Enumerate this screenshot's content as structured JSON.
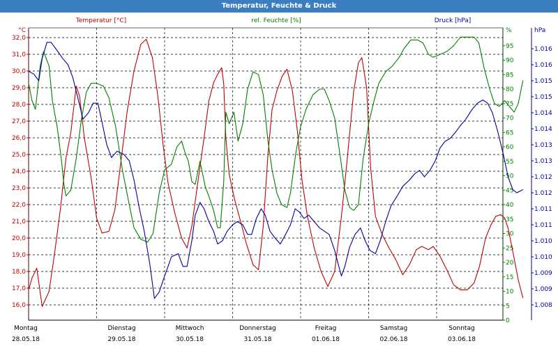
{
  "window": {
    "title": "Temperatur, Feuchte & Druck"
  },
  "colors": {
    "temperature": "#c00000",
    "humidity": "#008000",
    "pressure": "#0000a0",
    "titlebar": "#3a7ec0",
    "grid": "#000000"
  },
  "legend": {
    "temperature": "Temperatur [°C]",
    "humidity": "rel. Feuchte [%]",
    "pressure": "Druck [hPa]"
  },
  "axes": {
    "left": {
      "unit": "°C",
      "ticks": [
        "16,0",
        "17,0",
        "18,0",
        "19,0",
        "20,0",
        "21,0",
        "22,0",
        "23,0",
        "24,0",
        "25,0",
        "26,0",
        "27,0",
        "28,0",
        "29,0",
        "30,0",
        "31,0",
        "32,0"
      ]
    },
    "right1": {
      "unit": "%",
      "ticks": [
        "0",
        "5",
        "10",
        "15",
        "20",
        "25",
        "30",
        "35",
        "40",
        "45",
        "50",
        "55",
        "60",
        "65",
        "70",
        "75",
        "80",
        "85",
        "90",
        "95"
      ]
    },
    "right2": {
      "unit": "hPa",
      "ticks": [
        "1.008",
        "1.009",
        "1.009",
        "1.010",
        "1.010",
        "1.011",
        "1.011",
        "1.012",
        "1.012",
        "1.013",
        "1.013",
        "1.014",
        "1.014",
        "1.015",
        "1.015",
        "1.016",
        "1.016"
      ]
    },
    "x": {
      "days": [
        {
          "day": "Montag",
          "date": "28.05.18"
        },
        {
          "day": "Dienstag",
          "date": "29.05.18"
        },
        {
          "day": "Mittwoch",
          "date": "30.05.18"
        },
        {
          "day": "Donnerstag",
          "date": "31.05.18"
        },
        {
          "day": "Freitag",
          "date": "01.06.18"
        },
        {
          "day": "Samstag",
          "date": "02.06.18"
        },
        {
          "day": "Sonntag",
          "date": "03.06.18"
        }
      ]
    }
  },
  "chart_data": {
    "type": "line",
    "title": "Temperatur, Feuchte & Druck",
    "x_unit": "days since 28.05.18 00:00",
    "xlim": [
      0,
      7
    ],
    "series": [
      {
        "name": "Temperatur [°C]",
        "axis": "left",
        "ylim": [
          15.5,
          32.7
        ],
        "points": [
          [
            0,
            16.9
          ],
          [
            0.05,
            17.6
          ],
          [
            0.12,
            18.2
          ],
          [
            0.2,
            15.9
          ],
          [
            0.3,
            16.8
          ],
          [
            0.38,
            19
          ],
          [
            0.47,
            21.8
          ],
          [
            0.55,
            24.8
          ],
          [
            0.62,
            26.3
          ],
          [
            0.7,
            29.1
          ],
          [
            0.75,
            28.5
          ],
          [
            0.82,
            26
          ],
          [
            0.92,
            23.6
          ],
          [
            1.0,
            21.2
          ],
          [
            1.08,
            20.3
          ],
          [
            1.18,
            20.4
          ],
          [
            1.27,
            21.7
          ],
          [
            1.37,
            25
          ],
          [
            1.45,
            27.6
          ],
          [
            1.55,
            30
          ],
          [
            1.65,
            31.6
          ],
          [
            1.73,
            31.9
          ],
          [
            1.82,
            30.8
          ],
          [
            1.9,
            28.5
          ],
          [
            1.98,
            25.5
          ],
          [
            2.05,
            23.3
          ],
          [
            2.15,
            21.5
          ],
          [
            2.25,
            20
          ],
          [
            2.33,
            19.4
          ],
          [
            2.4,
            20.7
          ],
          [
            2.5,
            23.7
          ],
          [
            2.58,
            26
          ],
          [
            2.65,
            28.2
          ],
          [
            2.72,
            29.3
          ],
          [
            2.78,
            29.8
          ],
          [
            2.84,
            30.2
          ],
          [
            2.87,
            29.2
          ],
          [
            2.9,
            26
          ],
          [
            2.95,
            23.8
          ],
          [
            3.03,
            22.3
          ],
          [
            3.13,
            20.8
          ],
          [
            3.2,
            19.7
          ],
          [
            3.3,
            18.4
          ],
          [
            3.38,
            18.1
          ],
          [
            3.45,
            20.7
          ],
          [
            3.52,
            25
          ],
          [
            3.58,
            27.7
          ],
          [
            3.65,
            28.8
          ],
          [
            3.73,
            29.7
          ],
          [
            3.8,
            30.1
          ],
          [
            3.88,
            28.8
          ],
          [
            3.95,
            26.5
          ],
          [
            4.02,
            23.5
          ],
          [
            4.1,
            21.3
          ],
          [
            4.2,
            19.4
          ],
          [
            4.3,
            18
          ],
          [
            4.4,
            17.1
          ],
          [
            4.5,
            18
          ],
          [
            4.6,
            21.3
          ],
          [
            4.68,
            24.5
          ],
          [
            4.78,
            28.8
          ],
          [
            4.85,
            30.5
          ],
          [
            4.9,
            30.8
          ],
          [
            4.97,
            29
          ],
          [
            5.03,
            24.2
          ],
          [
            5.1,
            21.3
          ],
          [
            5.2,
            20.2
          ],
          [
            5.3,
            19.4
          ],
          [
            5.4,
            18.7
          ],
          [
            5.5,
            17.8
          ],
          [
            5.6,
            18.4
          ],
          [
            5.7,
            19.3
          ],
          [
            5.78,
            19.5
          ],
          [
            5.88,
            19.3
          ],
          [
            5.95,
            19.5
          ],
          [
            6.05,
            18.9
          ],
          [
            6.15,
            18.1
          ],
          [
            6.25,
            17.2
          ],
          [
            6.35,
            16.9
          ],
          [
            6.45,
            16.9
          ],
          [
            6.55,
            17.3
          ],
          [
            6.63,
            18.3
          ],
          [
            6.72,
            20
          ],
          [
            6.8,
            20.8
          ],
          [
            6.87,
            21.3
          ],
          [
            6.94,
            21.4
          ],
          [
            7.0,
            21.2
          ],
          [
            7.05,
            20.6
          ],
          [
            7.12,
            19.2
          ],
          [
            7.2,
            17.5
          ],
          [
            7.27,
            16.4
          ]
        ]
      },
      {
        "name": "rel. Feuchte [%]",
        "axis": "right1",
        "ylim": [
          0,
          100
        ],
        "points": [
          [
            0,
            82
          ],
          [
            0.05,
            76
          ],
          [
            0.1,
            73
          ],
          [
            0.17,
            88
          ],
          [
            0.22,
            93
          ],
          [
            0.3,
            88
          ],
          [
            0.35,
            76
          ],
          [
            0.42,
            67
          ],
          [
            0.48,
            56
          ],
          [
            0.52,
            47
          ],
          [
            0.55,
            43
          ],
          [
            0.62,
            45
          ],
          [
            0.7,
            56
          ],
          [
            0.78,
            70
          ],
          [
            0.85,
            79
          ],
          [
            0.92,
            82
          ],
          [
            1.0,
            82
          ],
          [
            1.1,
            81
          ],
          [
            1.18,
            77
          ],
          [
            1.28,
            67
          ],
          [
            1.38,
            52
          ],
          [
            1.48,
            40
          ],
          [
            1.55,
            32
          ],
          [
            1.65,
            28
          ],
          [
            1.75,
            27
          ],
          [
            1.83,
            30
          ],
          [
            1.92,
            44
          ],
          [
            2.0,
            52
          ],
          [
            2.1,
            54
          ],
          [
            2.18,
            60
          ],
          [
            2.25,
            62
          ],
          [
            2.3,
            58
          ],
          [
            2.35,
            55
          ],
          [
            2.4,
            48
          ],
          [
            2.45,
            47
          ],
          [
            2.52,
            55
          ],
          [
            2.6,
            46
          ],
          [
            2.65,
            43
          ],
          [
            2.72,
            38
          ],
          [
            2.78,
            32
          ],
          [
            2.82,
            32
          ],
          [
            2.87,
            48
          ],
          [
            2.9,
            72
          ],
          [
            2.95,
            68
          ],
          [
            3.02,
            72
          ],
          [
            3.08,
            62
          ],
          [
            3.15,
            68
          ],
          [
            3.22,
            80
          ],
          [
            3.3,
            86
          ],
          [
            3.38,
            85
          ],
          [
            3.45,
            78
          ],
          [
            3.52,
            62
          ],
          [
            3.58,
            52
          ],
          [
            3.65,
            44
          ],
          [
            3.72,
            40
          ],
          [
            3.8,
            39
          ],
          [
            3.85,
            44
          ],
          [
            3.93,
            58
          ],
          [
            4.0,
            67
          ],
          [
            4.08,
            73
          ],
          [
            4.18,
            78
          ],
          [
            4.28,
            80
          ],
          [
            4.35,
            80
          ],
          [
            4.42,
            76
          ],
          [
            4.5,
            70
          ],
          [
            4.58,
            57
          ],
          [
            4.65,
            45
          ],
          [
            4.72,
            39
          ],
          [
            4.78,
            38
          ],
          [
            4.85,
            40
          ],
          [
            4.92,
            56
          ],
          [
            5.0,
            68
          ],
          [
            5.08,
            76
          ],
          [
            5.15,
            82
          ],
          [
            5.25,
            86
          ],
          [
            5.35,
            88
          ],
          [
            5.45,
            91
          ],
          [
            5.52,
            94
          ],
          [
            5.62,
            97
          ],
          [
            5.72,
            97
          ],
          [
            5.8,
            96
          ],
          [
            5.88,
            92
          ],
          [
            5.95,
            91
          ],
          [
            6.05,
            92
          ],
          [
            6.15,
            93
          ],
          [
            6.25,
            95
          ],
          [
            6.35,
            98
          ],
          [
            6.45,
            98
          ],
          [
            6.55,
            98
          ],
          [
            6.62,
            96
          ],
          [
            6.7,
            87
          ],
          [
            6.78,
            80
          ],
          [
            6.85,
            75
          ],
          [
            6.92,
            74
          ],
          [
            7.0,
            76
          ],
          [
            7.07,
            74
          ],
          [
            7.14,
            72
          ],
          [
            7.2,
            75
          ],
          [
            7.27,
            83
          ]
        ]
      },
      {
        "name": "Druck [hPa]",
        "axis": "right2",
        "ylim": [
          1.0077,
          1.0169
        ],
        "points": [
          [
            0,
            1.0153
          ],
          [
            0.08,
            1.0152
          ],
          [
            0.15,
            1.015
          ],
          [
            0.2,
            1.0157
          ],
          [
            0.27,
            1.0162
          ],
          [
            0.33,
            1.0162
          ],
          [
            0.4,
            1.016
          ],
          [
            0.5,
            1.0157
          ],
          [
            0.58,
            1.0155
          ],
          [
            0.65,
            1.0151
          ],
          [
            0.72,
            1.0145
          ],
          [
            0.8,
            1.0138
          ],
          [
            0.88,
            1.014
          ],
          [
            0.95,
            1.0143
          ],
          [
            1.02,
            1.0143
          ],
          [
            1.08,
            1.0137
          ],
          [
            1.15,
            1.013
          ],
          [
            1.22,
            1.0126
          ],
          [
            1.3,
            1.0128
          ],
          [
            1.4,
            1.0127
          ],
          [
            1.48,
            1.0125
          ],
          [
            1.55,
            1.0119
          ],
          [
            1.62,
            1.0111
          ],
          [
            1.7,
            1.0103
          ],
          [
            1.78,
            1.0093
          ],
          [
            1.85,
            1.0082
          ],
          [
            1.92,
            1.0084
          ],
          [
            2.0,
            1.0089
          ],
          [
            2.1,
            1.0095
          ],
          [
            2.2,
            1.0096
          ],
          [
            2.27,
            1.0092
          ],
          [
            2.33,
            1.0092
          ],
          [
            2.4,
            1.01
          ],
          [
            2.45,
            1.0108
          ],
          [
            2.52,
            1.0112
          ],
          [
            2.58,
            1.011
          ],
          [
            2.65,
            1.0106
          ],
          [
            2.72,
            1.0103
          ],
          [
            2.78,
            1.0099
          ],
          [
            2.85,
            1.01
          ],
          [
            2.92,
            1.0103
          ],
          [
            3.0,
            1.0105
          ],
          [
            3.07,
            1.0106
          ],
          [
            3.15,
            1.0105
          ],
          [
            3.22,
            1.0102
          ],
          [
            3.28,
            1.0102
          ],
          [
            3.35,
            1.0107
          ],
          [
            3.42,
            1.011
          ],
          [
            3.48,
            1.0108
          ],
          [
            3.55,
            1.0103
          ],
          [
            3.62,
            1.0101
          ],
          [
            3.7,
            1.0099
          ],
          [
            3.78,
            1.0102
          ],
          [
            3.85,
            1.0105
          ],
          [
            3.92,
            1.011
          ],
          [
            3.98,
            1.0109
          ],
          [
            4.05,
            1.0107
          ],
          [
            4.12,
            1.0108
          ],
          [
            4.2,
            1.0106
          ],
          [
            4.28,
            1.0104
          ],
          [
            4.35,
            1.0103
          ],
          [
            4.42,
            1.0102
          ],
          [
            4.5,
            1.0097
          ],
          [
            4.55,
            1.0093
          ],
          [
            4.6,
            1.0089
          ],
          [
            4.65,
            1.0092
          ],
          [
            4.72,
            1.0098
          ],
          [
            4.8,
            1.0102
          ],
          [
            4.88,
            1.0104
          ],
          [
            4.95,
            1.01
          ],
          [
            5.02,
            1.0097
          ],
          [
            5.1,
            1.0096
          ],
          [
            5.17,
            1.01
          ],
          [
            5.25,
            1.0106
          ],
          [
            5.33,
            1.0111
          ],
          [
            5.42,
            1.0114
          ],
          [
            5.5,
            1.0117
          ],
          [
            5.6,
            1.0119
          ],
          [
            5.68,
            1.0121
          ],
          [
            5.75,
            1.0122
          ],
          [
            5.82,
            1.012
          ],
          [
            5.9,
            1.0122
          ],
          [
            5.98,
            1.0125
          ],
          [
            6.05,
            1.0129
          ],
          [
            6.12,
            1.0131
          ],
          [
            6.2,
            1.0132
          ],
          [
            6.28,
            1.0134
          ],
          [
            6.35,
            1.0136
          ],
          [
            6.43,
            1.0138
          ],
          [
            6.52,
            1.0141
          ],
          [
            6.6,
            1.0143
          ],
          [
            6.68,
            1.0144
          ],
          [
            6.75,
            1.0143
          ],
          [
            6.82,
            1.014
          ],
          [
            6.9,
            1.0134
          ],
          [
            6.98,
            1.0127
          ],
          [
            7.05,
            1.012
          ],
          [
            7.12,
            1.0116
          ],
          [
            7.18,
            1.0115
          ],
          [
            7.27,
            1.0116
          ]
        ]
      }
    ],
    "grid": true
  }
}
